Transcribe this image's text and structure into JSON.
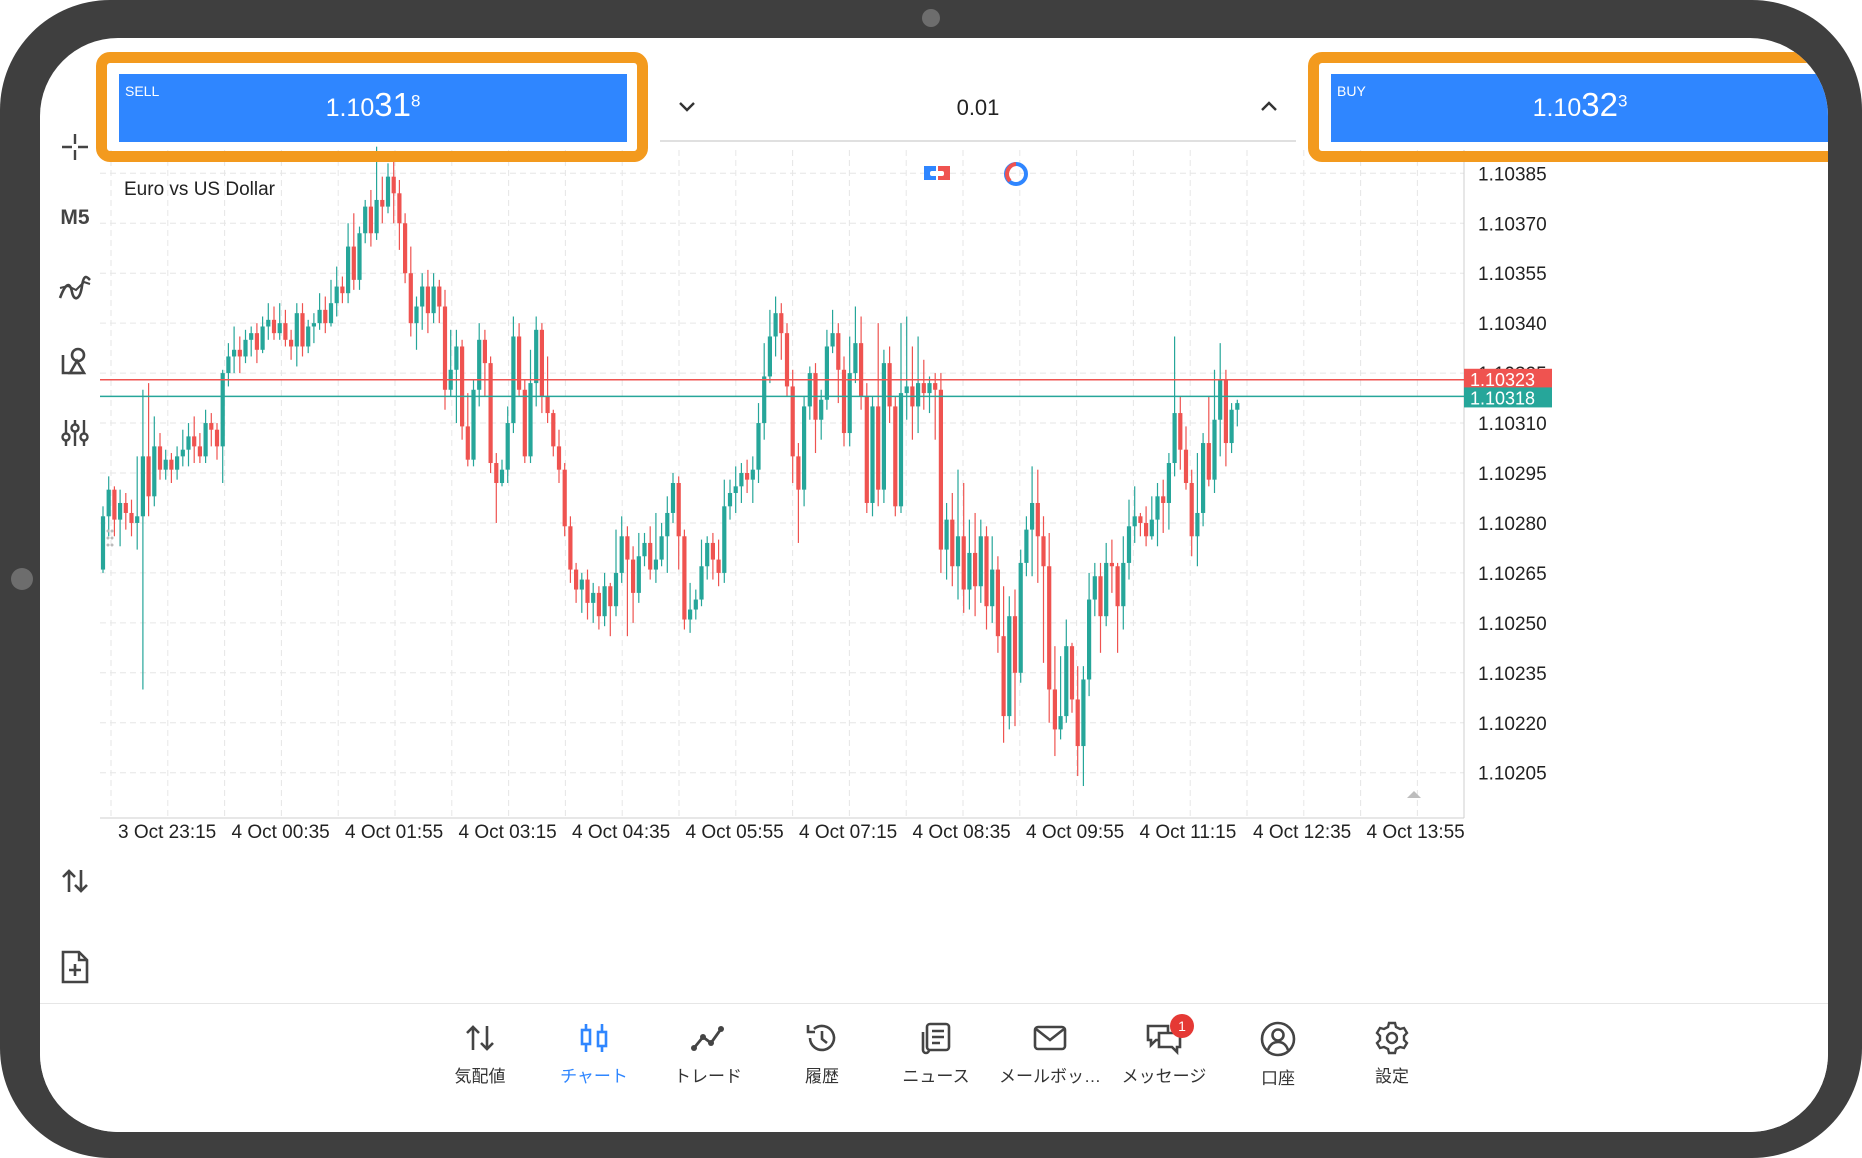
{
  "trade": {
    "sell": {
      "label": "SELL",
      "price_prefix": "1.10",
      "price_big": "31",
      "price_sup": "8"
    },
    "buy": {
      "label": "BUY",
      "price_prefix": "1.10",
      "price_big": "32",
      "price_sup": "3"
    },
    "volume": "0.01"
  },
  "toolbar": {
    "timeframe": "M5"
  },
  "colors": {
    "bull": "#26a69a",
    "bear": "#ef5350",
    "accent": "#2f86ff",
    "highlight": "#f39a1e",
    "ask_line": "#ef5350",
    "bid_line": "#26a69a"
  },
  "chart_data": {
    "type": "candlestick",
    "title": "Euro vs US Dollar",
    "y_ticks": [
      "1.10385",
      "1.10370",
      "1.10355",
      "1.10340",
      "1.10325",
      "1.10310",
      "1.10295",
      "1.10280",
      "1.10265",
      "1.10250",
      "1.10235",
      "1.10220",
      "1.10205"
    ],
    "y_tick_values": [
      1.10385,
      1.1037,
      1.10355,
      1.1034,
      1.10325,
      1.1031,
      1.10295,
      1.1028,
      1.10265,
      1.1025,
      1.10235,
      1.1022,
      1.10205
    ],
    "x_ticks": [
      "3 Oct 23:15",
      "4 Oct 00:35",
      "4 Oct 01:55",
      "4 Oct 03:15",
      "4 Oct 04:35",
      "4 Oct 05:55",
      "4 Oct 07:15",
      "4 Oct 08:35",
      "4 Oct 09:55",
      "4 Oct 11:15",
      "4 Oct 12:35",
      "4 Oct 13:55"
    ],
    "ask_label": "1.10323",
    "bid_label": "1.10318",
    "ask_price": 1.10323,
    "bid_price": 1.10318,
    "ylim": [
      1.10192,
      1.10392
    ],
    "grid": true,
    "candles": [
      [
        1.10266,
        1.10282,
        1.10265,
        1.10285
      ],
      [
        1.10282,
        1.1029,
        1.10276,
        1.10294
      ],
      [
        1.1029,
        1.10281,
        1.10276,
        1.10291
      ],
      [
        1.10281,
        1.10286,
        1.10273,
        1.1029
      ],
      [
        1.10286,
        1.10283,
        1.10278,
        1.10289
      ],
      [
        1.10283,
        1.1028,
        1.10276,
        1.10287
      ],
      [
        1.1028,
        1.10282,
        1.10272,
        1.103
      ],
      [
        1.10282,
        1.103,
        1.1023,
        1.1032
      ],
      [
        1.103,
        1.10288,
        1.10282,
        1.10322
      ],
      [
        1.10288,
        1.10303,
        1.10285,
        1.10312
      ],
      [
        1.10303,
        1.10296,
        1.10293,
        1.10307
      ],
      [
        1.10296,
        1.10299,
        1.10293,
        1.10302
      ],
      [
        1.10299,
        1.10296,
        1.10292,
        1.10301
      ],
      [
        1.10296,
        1.103,
        1.10293,
        1.10303
      ],
      [
        1.103,
        1.10302,
        1.10297,
        1.10308
      ],
      [
        1.10302,
        1.10306,
        1.10297,
        1.1031
      ],
      [
        1.10306,
        1.10303,
        1.10298,
        1.10312
      ],
      [
        1.10303,
        1.103,
        1.10298,
        1.10307
      ],
      [
        1.103,
        1.1031,
        1.10298,
        1.10314
      ],
      [
        1.1031,
        1.10308,
        1.10303,
        1.10313
      ],
      [
        1.10308,
        1.10303,
        1.10299,
        1.1031
      ],
      [
        1.10303,
        1.10325,
        1.10292,
        1.10326
      ],
      [
        1.10325,
        1.1033,
        1.10321,
        1.10334
      ],
      [
        1.1033,
        1.10332,
        1.10325,
        1.10339
      ],
      [
        1.10332,
        1.1033,
        1.10325,
        1.10336
      ],
      [
        1.1033,
        1.10335,
        1.10328,
        1.10338
      ],
      [
        1.10335,
        1.10337,
        1.1033,
        1.10339
      ],
      [
        1.10337,
        1.10332,
        1.10328,
        1.1034
      ],
      [
        1.10332,
        1.10339,
        1.10331,
        1.10342
      ],
      [
        1.10339,
        1.10341,
        1.10335,
        1.10346
      ],
      [
        1.10341,
        1.10337,
        1.10335,
        1.10345
      ],
      [
        1.10337,
        1.1034,
        1.10335,
        1.10346
      ],
      [
        1.1034,
        1.10335,
        1.10333,
        1.10344
      ],
      [
        1.10335,
        1.10333,
        1.10329,
        1.10338
      ],
      [
        1.10333,
        1.10343,
        1.10327,
        1.10346
      ],
      [
        1.10343,
        1.10333,
        1.1033,
        1.10346
      ],
      [
        1.10333,
        1.10339,
        1.10331,
        1.10341
      ],
      [
        1.10339,
        1.1034,
        1.10334,
        1.10343
      ],
      [
        1.1034,
        1.10344,
        1.10338,
        1.10349
      ],
      [
        1.10344,
        1.1034,
        1.10337,
        1.10348
      ],
      [
        1.1034,
        1.10346,
        1.10339,
        1.10353
      ],
      [
        1.10346,
        1.10351,
        1.10342,
        1.10357
      ],
      [
        1.10351,
        1.10349,
        1.10346,
        1.10354
      ],
      [
        1.10349,
        1.10363,
        1.10346,
        1.1037
      ],
      [
        1.10363,
        1.10353,
        1.1035,
        1.10373
      ],
      [
        1.10353,
        1.10367,
        1.1035,
        1.10369
      ],
      [
        1.10367,
        1.10375,
        1.10364,
        1.10377
      ],
      [
        1.10375,
        1.10367,
        1.10363,
        1.1038
      ],
      [
        1.10367,
        1.10377,
        1.10365,
        1.10393
      ],
      [
        1.10377,
        1.10375,
        1.1037,
        1.10384
      ],
      [
        1.10375,
        1.10384,
        1.10373,
        1.10388
      ],
      [
        1.10384,
        1.10379,
        1.1037,
        1.10389
      ],
      [
        1.10379,
        1.1037,
        1.10362,
        1.10383
      ],
      [
        1.1037,
        1.10355,
        1.10352,
        1.10373
      ],
      [
        1.10355,
        1.1034,
        1.10336,
        1.10363
      ],
      [
        1.1034,
        1.10345,
        1.10332,
        1.10348
      ],
      [
        1.10345,
        1.10351,
        1.10338,
        1.10355
      ],
      [
        1.10351,
        1.10343,
        1.10337,
        1.10356
      ],
      [
        1.10343,
        1.10351,
        1.1034,
        1.10355
      ],
      [
        1.10351,
        1.10345,
        1.1034,
        1.10353
      ],
      [
        1.10345,
        1.1032,
        1.10314,
        1.1035
      ],
      [
        1.1032,
        1.10326,
        1.10318,
        1.10338
      ],
      [
        1.10326,
        1.10333,
        1.1031,
        1.10338
      ],
      [
        1.10333,
        1.10309,
        1.10305,
        1.10335
      ],
      [
        1.10309,
        1.10299,
        1.10297,
        1.10319
      ],
      [
        1.10299,
        1.1032,
        1.10297,
        1.10323
      ],
      [
        1.1032,
        1.10335,
        1.10315,
        1.1034
      ],
      [
        1.10335,
        1.10328,
        1.10318,
        1.10338
      ],
      [
        1.10328,
        1.10298,
        1.10295,
        1.1033
      ],
      [
        1.10298,
        1.10292,
        1.1028,
        1.10301
      ],
      [
        1.10292,
        1.10296,
        1.10291,
        1.10299
      ],
      [
        1.10296,
        1.1031,
        1.10292,
        1.10315
      ],
      [
        1.1031,
        1.10336,
        1.10307,
        1.10342
      ],
      [
        1.10336,
        1.1032,
        1.10318,
        1.1034
      ],
      [
        1.1032,
        1.103,
        1.10298,
        1.10323
      ],
      [
        1.103,
        1.10322,
        1.10298,
        1.10332
      ],
      [
        1.10322,
        1.10338,
        1.10315,
        1.10342
      ],
      [
        1.10338,
        1.10318,
        1.10313,
        1.1034
      ],
      [
        1.10318,
        1.10313,
        1.1031,
        1.1033
      ],
      [
        1.10313,
        1.10303,
        1.103,
        1.10314
      ],
      [
        1.10303,
        1.10296,
        1.10292,
        1.10308
      ],
      [
        1.10296,
        1.10279,
        1.10276,
        1.10298
      ],
      [
        1.10279,
        1.10266,
        1.10262,
        1.10282
      ],
      [
        1.10266,
        1.1026,
        1.10256,
        1.10268
      ],
      [
        1.1026,
        1.10263,
        1.10253,
        1.10265
      ],
      [
        1.10263,
        1.10256,
        1.10251,
        1.10266
      ],
      [
        1.10256,
        1.10259,
        1.1025,
        1.10262
      ],
      [
        1.10259,
        1.10252,
        1.10248,
        1.10261
      ],
      [
        1.10252,
        1.10261,
        1.10249,
        1.10265
      ],
      [
        1.10261,
        1.10255,
        1.10246,
        1.10262
      ],
      [
        1.10255,
        1.10265,
        1.10252,
        1.10278
      ],
      [
        1.10265,
        1.10276,
        1.10262,
        1.10282
      ],
      [
        1.10276,
        1.10269,
        1.10246,
        1.10279
      ],
      [
        1.10269,
        1.10259,
        1.1025,
        1.10273
      ],
      [
        1.10259,
        1.1027,
        1.10256,
        1.10277
      ],
      [
        1.1027,
        1.10274,
        1.10267,
        1.10277
      ],
      [
        1.10274,
        1.10266,
        1.10263,
        1.10279
      ],
      [
        1.10266,
        1.10269,
        1.10262,
        1.10283
      ],
      [
        1.10269,
        1.10276,
        1.10267,
        1.1028
      ],
      [
        1.10276,
        1.10283,
        1.10265,
        1.10288
      ],
      [
        1.10283,
        1.10292,
        1.1028,
        1.10295
      ],
      [
        1.10292,
        1.10276,
        1.10266,
        1.10294
      ],
      [
        1.10276,
        1.10251,
        1.10248,
        1.10278
      ],
      [
        1.10251,
        1.10254,
        1.10247,
        1.10262
      ],
      [
        1.10254,
        1.10257,
        1.10251,
        1.1026
      ],
      [
        1.10257,
        1.10267,
        1.10255,
        1.10275
      ],
      [
        1.10267,
        1.10274,
        1.10263,
        1.10276
      ],
      [
        1.10274,
        1.10269,
        1.10263,
        1.10277
      ],
      [
        1.10269,
        1.10265,
        1.10261,
        1.10275
      ],
      [
        1.10265,
        1.10285,
        1.10262,
        1.10293
      ],
      [
        1.10285,
        1.10289,
        1.10281,
        1.10293
      ],
      [
        1.10289,
        1.10291,
        1.10283,
        1.10297
      ],
      [
        1.10291,
        1.10295,
        1.10286,
        1.10298
      ],
      [
        1.10295,
        1.10293,
        1.10289,
        1.10299
      ],
      [
        1.10293,
        1.10296,
        1.10286,
        1.103
      ],
      [
        1.10296,
        1.1031,
        1.10292,
        1.10316
      ],
      [
        1.1031,
        1.10324,
        1.10305,
        1.10334
      ],
      [
        1.10324,
        1.10336,
        1.10322,
        1.10344
      ],
      [
        1.10336,
        1.10343,
        1.1033,
        1.10348
      ],
      [
        1.10343,
        1.10337,
        1.10329,
        1.10346
      ],
      [
        1.10337,
        1.10321,
        1.10318,
        1.1034
      ],
      [
        1.10321,
        1.103,
        1.10292,
        1.10326
      ],
      [
        1.103,
        1.1029,
        1.10274,
        1.10304
      ],
      [
        1.1029,
        1.10315,
        1.10285,
        1.10318
      ],
      [
        1.10315,
        1.10325,
        1.10311,
        1.10327
      ],
      [
        1.10325,
        1.10311,
        1.10301,
        1.10328
      ],
      [
        1.10311,
        1.10317,
        1.10305,
        1.1032
      ],
      [
        1.10317,
        1.10333,
        1.10314,
        1.10338
      ],
      [
        1.10333,
        1.10337,
        1.10331,
        1.10344
      ],
      [
        1.10337,
        1.10326,
        1.10316,
        1.1034
      ],
      [
        1.10326,
        1.10307,
        1.10303,
        1.1033
      ],
      [
        1.10307,
        1.10325,
        1.10303,
        1.10336
      ],
      [
        1.10325,
        1.10334,
        1.10322,
        1.10345
      ],
      [
        1.10334,
        1.10318,
        1.10314,
        1.10342
      ],
      [
        1.10318,
        1.10286,
        1.10283,
        1.10322
      ],
      [
        1.10286,
        1.10315,
        1.10282,
        1.10318
      ],
      [
        1.10315,
        1.1029,
        1.10285,
        1.1034
      ],
      [
        1.1029,
        1.10328,
        1.10286,
        1.10332
      ],
      [
        1.10328,
        1.10315,
        1.1031,
        1.10333
      ],
      [
        1.10315,
        1.10285,
        1.10282,
        1.10318
      ],
      [
        1.10285,
        1.10319,
        1.10283,
        1.1034
      ],
      [
        1.10319,
        1.10321,
        1.10311,
        1.10342
      ],
      [
        1.10321,
        1.10315,
        1.10305,
        1.10333
      ],
      [
        1.10315,
        1.10322,
        1.10307,
        1.10336
      ],
      [
        1.10322,
        1.10319,
        1.10314,
        1.10329
      ],
      [
        1.10319,
        1.10322,
        1.10313,
        1.10324
      ],
      [
        1.10322,
        1.1032,
        1.10305,
        1.10325
      ],
      [
        1.1032,
        1.10272,
        1.10265,
        1.10325
      ],
      [
        1.10272,
        1.10281,
        1.10263,
        1.10286
      ],
      [
        1.10281,
        1.10267,
        1.10261,
        1.10289
      ],
      [
        1.10267,
        1.10276,
        1.10257,
        1.10296
      ],
      [
        1.10276,
        1.1026,
        1.10253,
        1.10292
      ],
      [
        1.1026,
        1.10271,
        1.10254,
        1.10281
      ],
      [
        1.10271,
        1.10261,
        1.10252,
        1.10283
      ],
      [
        1.10261,
        1.10276,
        1.10256,
        1.10281
      ],
      [
        1.10276,
        1.10255,
        1.10248,
        1.10279
      ],
      [
        1.10255,
        1.10266,
        1.1025,
        1.10276
      ],
      [
        1.10266,
        1.10246,
        1.10241,
        1.1027
      ],
      [
        1.10246,
        1.10222,
        1.10214,
        1.10261
      ],
      [
        1.10222,
        1.10252,
        1.10218,
        1.10258
      ],
      [
        1.10252,
        1.10235,
        1.10219,
        1.1026
      ],
      [
        1.10235,
        1.10268,
        1.10232,
        1.10272
      ],
      [
        1.10268,
        1.10278,
        1.10264,
        1.10282
      ],
      [
        1.10278,
        1.10286,
        1.10264,
        1.10297
      ],
      [
        1.10286,
        1.10276,
        1.10262,
        1.10296
      ],
      [
        1.10276,
        1.10267,
        1.10238,
        1.10282
      ],
      [
        1.10267,
        1.1023,
        1.1022,
        1.10277
      ],
      [
        1.1023,
        1.10218,
        1.1021,
        1.10243
      ],
      [
        1.10218,
        1.10222,
        1.10215,
        1.1024
      ],
      [
        1.10222,
        1.10243,
        1.1022,
        1.10251
      ],
      [
        1.10243,
        1.10227,
        1.10223,
        1.10244
      ],
      [
        1.10227,
        1.10213,
        1.10204,
        1.10237
      ],
      [
        1.10213,
        1.10233,
        1.10201,
        1.10237
      ],
      [
        1.10233,
        1.10257,
        1.10228,
        1.10265
      ],
      [
        1.10257,
        1.10264,
        1.10252,
        1.10268
      ],
      [
        1.10264,
        1.10252,
        1.10241,
        1.10268
      ],
      [
        1.10252,
        1.10268,
        1.10249,
        1.10274
      ],
      [
        1.10268,
        1.10267,
        1.10259,
        1.10275
      ],
      [
        1.10267,
        1.10255,
        1.10241,
        1.10268
      ],
      [
        1.10255,
        1.10268,
        1.10248,
        1.10276
      ],
      [
        1.10268,
        1.10279,
        1.10263,
        1.10287
      ],
      [
        1.10279,
        1.10282,
        1.10274,
        1.10291
      ],
      [
        1.10282,
        1.1028,
        1.10276,
        1.10283
      ],
      [
        1.1028,
        1.10276,
        1.10273,
        1.10285
      ],
      [
        1.10276,
        1.10281,
        1.10275,
        1.10288
      ],
      [
        1.10281,
        1.10288,
        1.10273,
        1.10292
      ],
      [
        1.10288,
        1.10286,
        1.10277,
        1.10293
      ],
      [
        1.10286,
        1.10298,
        1.10278,
        1.10301
      ],
      [
        1.10298,
        1.10313,
        1.10294,
        1.10336
      ],
      [
        1.10313,
        1.10302,
        1.10296,
        1.10318
      ],
      [
        1.10302,
        1.10292,
        1.1029,
        1.10309
      ],
      [
        1.10292,
        1.10276,
        1.1027,
        1.10296
      ],
      [
        1.10276,
        1.10283,
        1.10267,
        1.10301
      ],
      [
        1.10283,
        1.10304,
        1.10279,
        1.10307
      ],
      [
        1.10304,
        1.10293,
        1.10291,
        1.10318
      ],
      [
        1.10293,
        1.10311,
        1.10289,
        1.10326
      ],
      [
        1.10311,
        1.10323,
        1.103,
        1.10334
      ],
      [
        1.10323,
        1.10304,
        1.10297,
        1.10326
      ],
      [
        1.10304,
        1.10314,
        1.10301,
        1.10316
      ],
      [
        1.10314,
        1.10316,
        1.10309,
        1.10317
      ]
    ]
  },
  "nav": [
    {
      "label": "気配値",
      "icon": "quotes-icon"
    },
    {
      "label": "チャート",
      "icon": "chart-icon"
    },
    {
      "label": "トレード",
      "icon": "trade-icon"
    },
    {
      "label": "履歴",
      "icon": "history-icon"
    },
    {
      "label": "ニュース",
      "icon": "news-icon"
    },
    {
      "label": "メールボッ…",
      "icon": "mailbox-icon"
    },
    {
      "label": "メッセージ",
      "icon": "messages-icon",
      "badge": "1"
    },
    {
      "label": "口座",
      "icon": "account-icon"
    },
    {
      "label": "設定",
      "icon": "settings-icon"
    }
  ]
}
